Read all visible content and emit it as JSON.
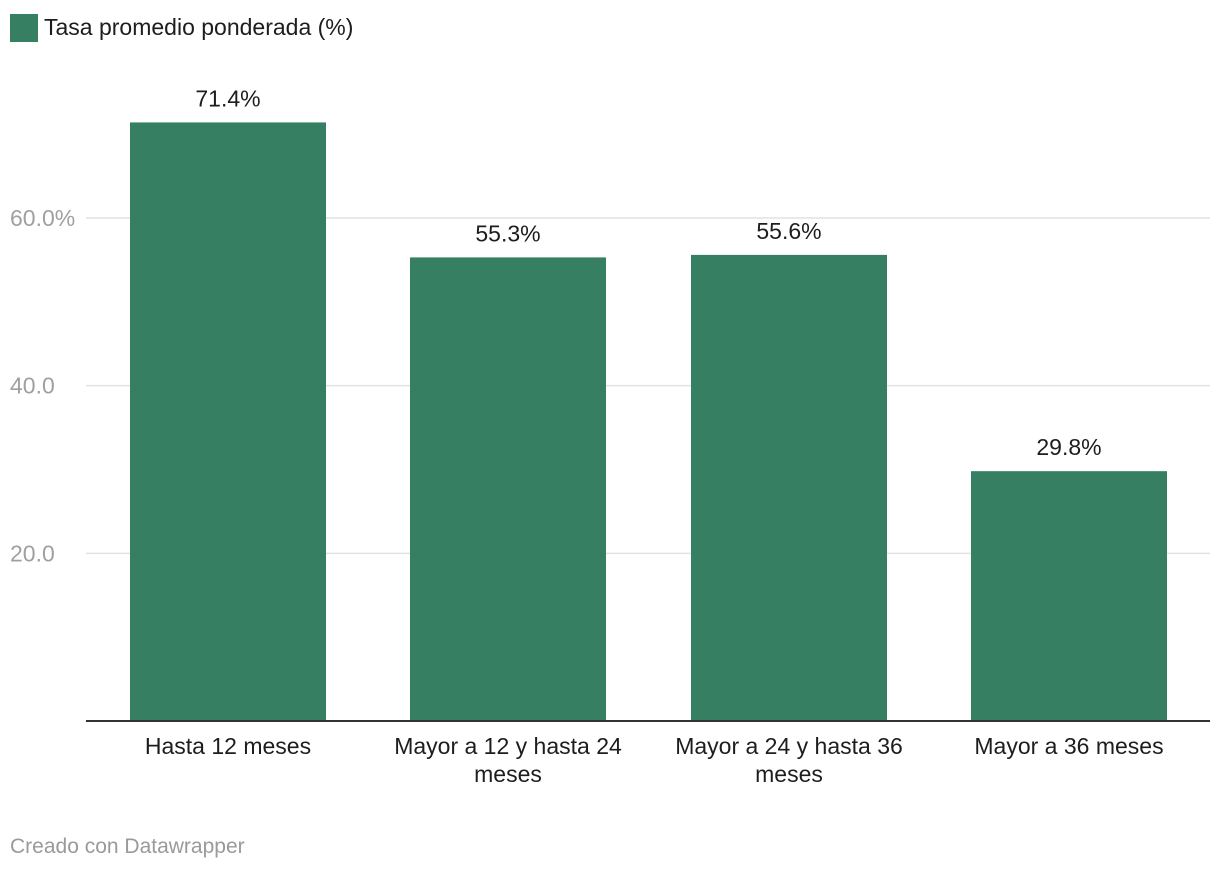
{
  "chart_data": {
    "type": "bar",
    "title": "",
    "xlabel": "",
    "ylabel": "",
    "legend": {
      "placement": "top-left",
      "entries": [
        {
          "label": "Tasa promedio ponderada (%)",
          "color": "#367f63"
        }
      ]
    },
    "categories": [
      [
        "Hasta 12 meses"
      ],
      [
        "Mayor a 12 y hasta 24",
        "meses"
      ],
      [
        "Mayor a 24 y hasta 36",
        "meses"
      ],
      [
        "Mayor a 36 meses"
      ]
    ],
    "series": [
      {
        "name": "Tasa promedio ponderada (%)",
        "values": [
          71.4,
          55.3,
          55.6,
          29.8
        ],
        "value_labels": [
          "71.4%",
          "55.3%",
          "55.6%",
          "29.8%"
        ]
      }
    ],
    "yticks": [
      {
        "value": 20,
        "label": "20.0"
      },
      {
        "value": 40,
        "label": "40.0"
      },
      {
        "value": 60,
        "label": "60.0%"
      }
    ],
    "ylim": [
      0,
      80
    ],
    "grid": true,
    "bar_color": "#367f63",
    "gridline_color": "#e2e2e2",
    "axis_color": "#333333"
  },
  "footer": {
    "credit": "Creado con Datawrapper"
  }
}
